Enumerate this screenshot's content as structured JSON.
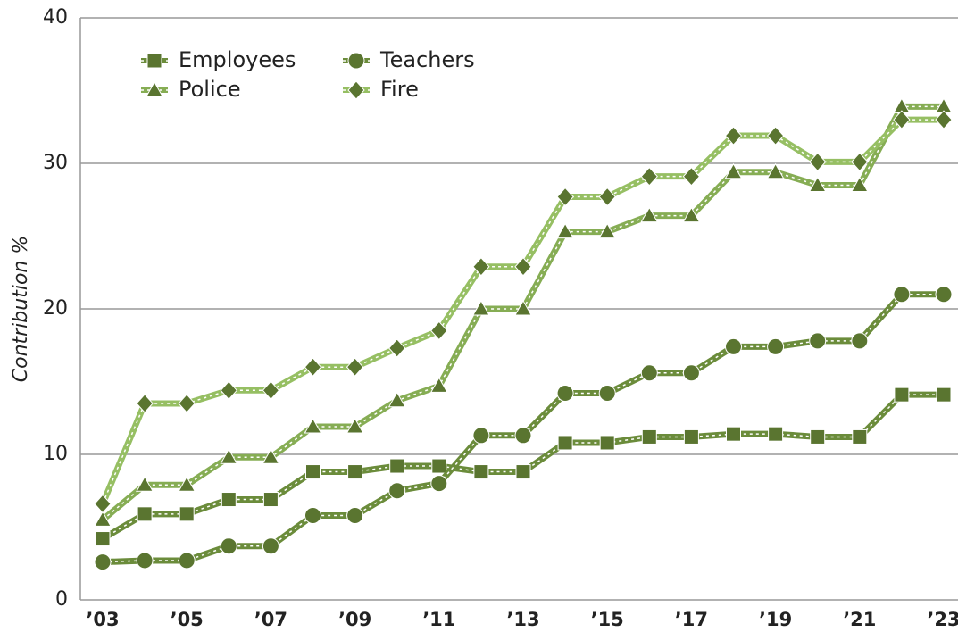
{
  "chart_data": {
    "type": "line",
    "y_label": "Contribution %",
    "categories": [
      "’03",
      null,
      "’05",
      null,
      "’07",
      null,
      "’09",
      null,
      "’11",
      null,
      "’13",
      null,
      "’15",
      null,
      "’17",
      null,
      "’19",
      null,
      "’21",
      null,
      "’23"
    ],
    "series": [
      {
        "name": "Employees",
        "color": "#6b8c3b",
        "marker": "square",
        "values": [
          4.2,
          5.9,
          5.9,
          6.9,
          6.9,
          8.8,
          8.8,
          9.2,
          9.2,
          8.8,
          8.8,
          10.8,
          10.8,
          11.2,
          11.2,
          11.4,
          11.4,
          11.2,
          11.2,
          14.1,
          14.1
        ]
      },
      {
        "name": "Teachers",
        "color": "#6b8c3b",
        "marker": "circle",
        "values": [
          2.6,
          2.7,
          2.7,
          3.7,
          3.7,
          5.8,
          5.8,
          7.5,
          8.0,
          11.3,
          11.3,
          14.2,
          14.2,
          15.6,
          15.6,
          17.4,
          17.4,
          17.8,
          17.8,
          21.0,
          21.0
        ]
      },
      {
        "name": "Police",
        "color": "#86ad54",
        "marker": "triangle",
        "values": [
          5.5,
          7.9,
          7.9,
          9.8,
          9.8,
          11.9,
          11.9,
          13.7,
          14.7,
          20.0,
          20.0,
          25.3,
          25.3,
          26.4,
          26.4,
          29.4,
          29.4,
          28.5,
          28.5,
          33.9,
          33.9
        ]
      },
      {
        "name": "Fire",
        "color": "#96bf63",
        "marker": "diamond",
        "values": [
          6.6,
          13.5,
          13.5,
          14.4,
          14.4,
          16.0,
          16.0,
          17.3,
          18.5,
          22.9,
          22.9,
          27.7,
          27.7,
          29.1,
          29.1,
          31.9,
          31.9,
          30.1,
          30.1,
          33.0,
          33.0
        ]
      }
    ],
    "marker_color": "#5a7530",
    "ylim": [
      0,
      40
    ],
    "yticks": [
      0,
      10,
      20,
      30,
      40
    ],
    "grid": true
  }
}
